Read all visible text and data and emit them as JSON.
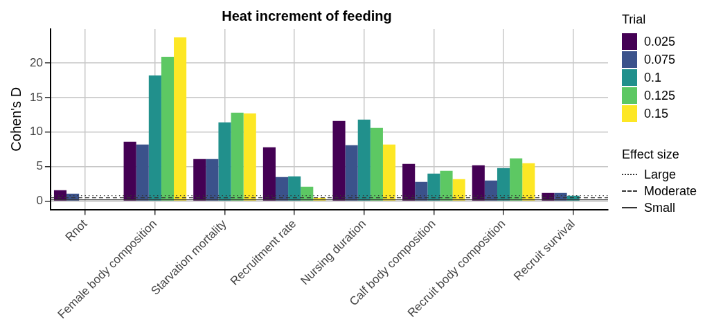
{
  "chart_data": {
    "type": "bar",
    "title": "Heat increment of feeding",
    "ylabel": "Cohen's D",
    "legend_title": "Trial",
    "legend": "right",
    "grid": true,
    "categories": [
      "Rnot",
      "Female body composition",
      "Starvation mortality",
      "Recruitment rate",
      "Nursing duration",
      "Calf body composition",
      "Recruit body composition",
      "Recruit survival"
    ],
    "series": [
      {
        "name": "0.025",
        "color": "#440154",
        "values": [
          1.6,
          8.6,
          6.1,
          7.8,
          11.6,
          5.4,
          5.2,
          1.2
        ]
      },
      {
        "name": "0.075",
        "color": "#3b528b",
        "values": [
          1.1,
          8.2,
          6.1,
          3.5,
          8.1,
          2.8,
          3.0,
          1.2
        ]
      },
      {
        "name": "0.1",
        "color": "#21908c",
        "values": [
          null,
          18.2,
          11.4,
          3.6,
          11.8,
          4.0,
          4.8,
          0.8
        ]
      },
      {
        "name": "0.125",
        "color": "#5dc863",
        "values": [
          null,
          20.9,
          12.8,
          2.1,
          10.6,
          4.4,
          6.2,
          0
        ]
      },
      {
        "name": "0.15",
        "color": "#fde725",
        "values": [
          0,
          23.7,
          12.7,
          0.5,
          8.2,
          3.2,
          5.5,
          0
        ]
      }
    ],
    "ylim": [
      -1.2,
      24.9
    ],
    "yticks": [
      0,
      5,
      10,
      15,
      20
    ],
    "ref_lines": [
      {
        "axis": "y",
        "value": 0.8,
        "label": "Large",
        "line_style": "dotted",
        "color": "#333333"
      },
      {
        "axis": "y",
        "value": 0.5,
        "label": "Moderate",
        "line_style": "dashed",
        "color": "#333333"
      },
      {
        "axis": "y",
        "value": 0.2,
        "label": "Small",
        "line_style": "solid",
        "color": "#333333"
      }
    ],
    "annotations": [
      "Effect size"
    ]
  }
}
